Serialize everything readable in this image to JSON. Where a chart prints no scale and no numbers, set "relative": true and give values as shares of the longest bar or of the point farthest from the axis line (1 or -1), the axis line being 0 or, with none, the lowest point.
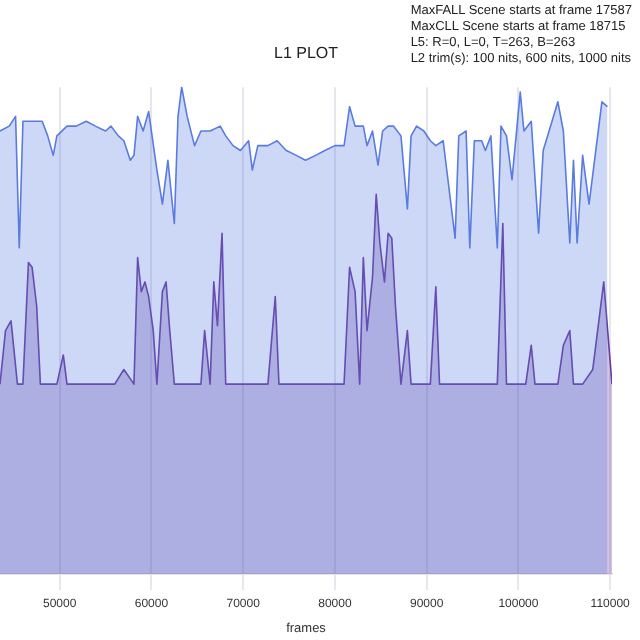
{
  "chart_data": {
    "type": "area",
    "title": "L1 PLOT",
    "xlabel": "frames",
    "relative": true,
    "annotations": [
      "MaxFALL Scene starts at frame 17587",
      "MaxCLL Scene starts at frame 18715",
      "L5: R=0, L=0, T=263, B=263",
      "L2 trim(s): 100 nits, 600 nits, 1000 nits"
    ],
    "xlim": [
      43500,
      110200
    ],
    "xticks": [
      50000,
      60000,
      70000,
      80000,
      90000,
      100000,
      110000
    ],
    "grid": "x",
    "legend": false,
    "series": [
      {
        "color": "#5a7be0",
        "x": [
          43500,
          44500,
          45200,
          45600,
          46000,
          47200,
          48100,
          48700,
          49300,
          49700,
          50800,
          51800,
          52900,
          53900,
          55000,
          55600,
          56400,
          57000,
          57700,
          58100,
          58500,
          59100,
          59700,
          60600,
          61200,
          61800,
          62500,
          62900,
          63300,
          63900,
          64700,
          65400,
          66400,
          67500,
          68100,
          68900,
          69700,
          70600,
          71000,
          71600,
          72700,
          73700,
          74700,
          75800,
          76800,
          77900,
          78900,
          80000,
          81000,
          81600,
          82200,
          83100,
          83500,
          84100,
          84700,
          85200,
          85800,
          86400,
          87200,
          87900,
          88300,
          88900,
          89700,
          90400,
          91000,
          91800,
          93100,
          93500,
          94300,
          94700,
          95200,
          96000,
          96400,
          97000,
          97700,
          98100,
          98700,
          99300,
          100200,
          100600,
          101400,
          102200,
          102700,
          103500,
          104300,
          104900,
          105600,
          106000,
          106400,
          107000,
          107700,
          108500,
          109100,
          109700
        ],
        "values": [
          0.91,
          0.92,
          0.94,
          0.67,
          0.93,
          0.93,
          0.93,
          0.9,
          0.86,
          0.9,
          0.92,
          0.92,
          0.93,
          0.92,
          0.91,
          0.92,
          0.9,
          0.89,
          0.85,
          0.86,
          0.94,
          0.91,
          0.95,
          0.83,
          0.76,
          0.85,
          0.72,
          0.94,
          1.0,
          0.94,
          0.88,
          0.91,
          0.91,
          0.92,
          0.9,
          0.88,
          0.87,
          0.89,
          0.83,
          0.88,
          0.88,
          0.89,
          0.87,
          0.86,
          0.85,
          0.86,
          0.87,
          0.88,
          0.88,
          0.96,
          0.92,
          0.92,
          0.88,
          0.91,
          0.84,
          0.91,
          0.92,
          0.92,
          0.9,
          0.75,
          0.9,
          0.92,
          0.91,
          0.89,
          0.88,
          0.89,
          0.69,
          0.9,
          0.91,
          0.67,
          0.89,
          0.89,
          0.87,
          0.9,
          0.67,
          0.92,
          0.9,
          0.81,
          0.99,
          0.91,
          0.93,
          0.7,
          0.87,
          0.92,
          0.97,
          0.91,
          0.68,
          0.85,
          0.68,
          0.86,
          0.76,
          0.88,
          0.97,
          0.96
        ]
      },
      {
        "color": "#6a3a9e",
        "x": [
          43500,
          44100,
          44700,
          45400,
          46000,
          46600,
          47000,
          47500,
          47900,
          49700,
          50400,
          50800,
          56000,
          57000,
          58100,
          58500,
          58900,
          59300,
          59700,
          60200,
          60600,
          61200,
          61600,
          62000,
          62500,
          65400,
          65800,
          66400,
          66800,
          67200,
          67700,
          68100,
          72700,
          73500,
          73900,
          81000,
          81600,
          82200,
          82700,
          83100,
          83500,
          84100,
          84500,
          84900,
          85400,
          85800,
          86200,
          86600,
          87200,
          87900,
          88300,
          90400,
          91000,
          91400,
          97700,
          98300,
          98700,
          100800,
          101400,
          101800,
          104300,
          104900,
          105600,
          106000,
          107000,
          108100,
          109300,
          110200
        ],
        "values": [
          0.39,
          0.5,
          0.52,
          0.39,
          0.39,
          0.64,
          0.63,
          0.55,
          0.39,
          0.39,
          0.45,
          0.39,
          0.39,
          0.42,
          0.39,
          0.65,
          0.58,
          0.6,
          0.57,
          0.5,
          0.39,
          0.58,
          0.6,
          0.5,
          0.39,
          0.39,
          0.5,
          0.39,
          0.6,
          0.51,
          0.7,
          0.39,
          0.39,
          0.57,
          0.39,
          0.39,
          0.63,
          0.58,
          0.39,
          0.65,
          0.5,
          0.61,
          0.78,
          0.68,
          0.6,
          0.7,
          0.69,
          0.55,
          0.39,
          0.5,
          0.39,
          0.39,
          0.59,
          0.39,
          0.39,
          0.72,
          0.39,
          0.39,
          0.47,
          0.39,
          0.39,
          0.47,
          0.5,
          0.39,
          0.39,
          0.42,
          0.6,
          0.39
        ]
      }
    ]
  }
}
